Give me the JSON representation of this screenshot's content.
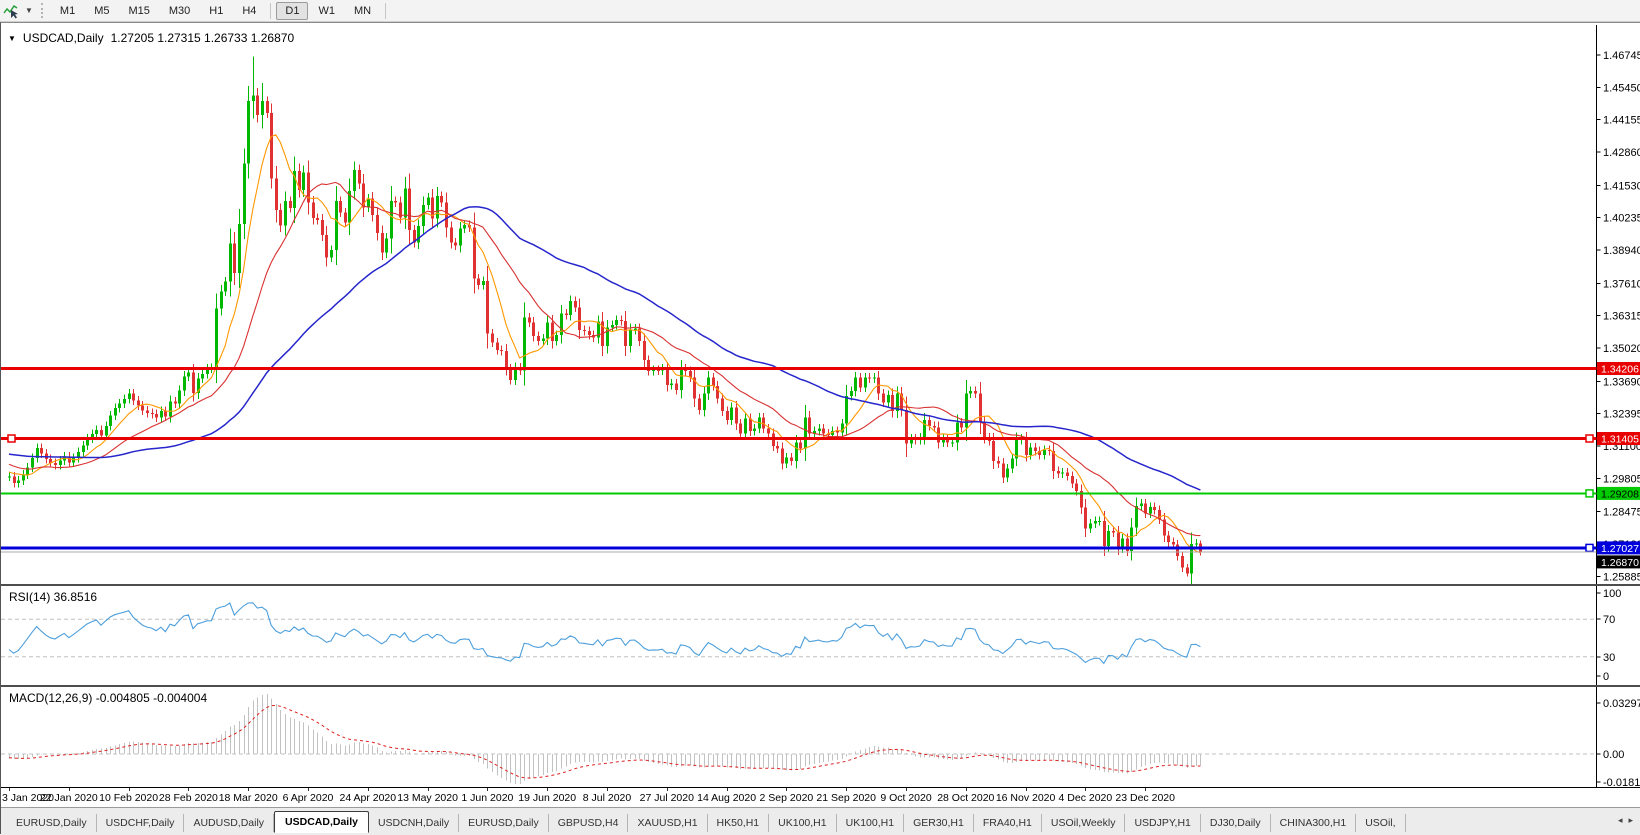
{
  "toolbar": {
    "dropdown_caret": "▼",
    "timeframes": [
      "M1",
      "M5",
      "M15",
      "M30",
      "H1",
      "H4",
      "D1",
      "W1",
      "MN"
    ],
    "active_timeframe": "D1",
    "separators_after": [
      "H4",
      "MN"
    ]
  },
  "title": {
    "caret": "▼",
    "symbol": "USDCAD,Daily",
    "ohlc": "1.27205 1.27315 1.26733 1.26870"
  },
  "rsi_label": "RSI(14) 36.8516",
  "macd_label": "MACD(12,26,9) -0.004805 -0.004004",
  "tabs": {
    "items": [
      "EURUSD,Daily",
      "USDCHF,Daily",
      "AUDUSD,Daily",
      "USDCAD,Daily",
      "USDCNH,Daily",
      "EURUSD,Daily",
      "GBPUSD,H4",
      "XAUUSD,H1",
      "HK50,H1",
      "UK100,H1",
      "UK100,H1",
      "GER30,H1",
      "FRA40,H1",
      "USOil,Weekly",
      "USDJPY,H1",
      "DJ30,Daily",
      "CHINA300,H1",
      "USOil,"
    ],
    "active_index": 3,
    "scroll_left": "◂",
    "scroll_right": "▸"
  },
  "chart_data": {
    "type": "candlestick",
    "symbol": "USDCAD",
    "timeframe": "Daily",
    "title": "USDCAD,Daily",
    "ohlc_current": {
      "open": 1.27205,
      "high": 1.27315,
      "low": 1.26733,
      "close": 1.2687
    },
    "ylim": [
      1.25885,
      1.46745
    ],
    "price_ticks": [
      "1.46745",
      "1.45450",
      "1.44155",
      "1.42860",
      "1.41530",
      "1.40235",
      "1.38940",
      "1.37610",
      "1.36315",
      "1.35020",
      "1.33690",
      "1.32395",
      "1.31100",
      "1.29805",
      "1.28475",
      "1.27180",
      "1.25885"
    ],
    "date_ticks": [
      "3 Jan 2020",
      "22 Jan 2020",
      "10 Feb 2020",
      "28 Feb 2020",
      "18 Mar 2020",
      "6 Apr 2020",
      "24 Apr 2020",
      "13 May 2020",
      "1 Jun 2020",
      "19 Jun 2020",
      "8 Jul 2020",
      "27 Jul 2020",
      "14 Aug 2020",
      "2 Sep 2020",
      "21 Sep 2020",
      "9 Oct 2020",
      "28 Oct 2020",
      "16 Nov 2020",
      "4 Dec 2020",
      "23 Dec 2020"
    ],
    "date_tick_step": 13,
    "candle_up_color": "#00b800",
    "candle_down_color": "#e03232",
    "levels": [
      {
        "price": 1.34206,
        "label": "1.34206",
        "color": "#e80000",
        "width": 3,
        "text_color": "#ffffff",
        "handles": []
      },
      {
        "price": 1.31405,
        "label": "1.31405",
        "color": "#e80000",
        "width": 3,
        "text_color": "#ffffff",
        "handles": [
          "left",
          "right"
        ]
      },
      {
        "price": 1.29208,
        "label": "1.29208",
        "color": "#00ca00",
        "width": 2,
        "text_color": "#000000",
        "handles": [
          "right"
        ]
      },
      {
        "price": 1.27027,
        "label": "1.27027",
        "color": "#0000dc",
        "width": 3,
        "text_color": "#ffffff",
        "handles": [
          "right"
        ]
      }
    ],
    "current_price": {
      "price": 1.2687,
      "label": "1.26870",
      "line_color": "#a8a8a8",
      "badge_color": "#000000",
      "text_color": "#ffffff"
    },
    "moving_averages": [
      {
        "type": "sma",
        "period": 8,
        "color": "#ff9800",
        "width": 1.1
      },
      {
        "type": "sma",
        "period": 21,
        "color": "#d93030",
        "width": 1.1
      },
      {
        "type": "sma",
        "period": 55,
        "color": "#2626cc",
        "width": 1.5
      }
    ],
    "rsi": {
      "period": 14,
      "current": 36.8516,
      "color": "#4d9fdc",
      "scale": [
        "100",
        "70",
        "30",
        "0"
      ],
      "dashed_levels": [
        70,
        30
      ]
    },
    "macd": {
      "fast": 12,
      "slow": 26,
      "signal": 9,
      "current_macd": -0.004805,
      "current_signal": -0.004004,
      "hist_color": "#c2c2c2",
      "signal_color": "#e02020",
      "scale": [
        "0.032972",
        "0.00",
        "-0.018154"
      ]
    },
    "closes_prehistory": [
      1.3085,
      1.3102,
      1.3118,
      1.3095,
      1.308,
      1.3062,
      1.3075,
      1.309,
      1.311,
      1.3125,
      1.314,
      1.3118,
      1.31,
      1.3082,
      1.307,
      1.3055,
      1.3042,
      1.306,
      1.3078,
      1.3095,
      1.3112,
      1.313,
      1.3148,
      1.316,
      1.3172,
      1.3155,
      1.3138,
      1.312,
      1.3105,
      1.3088,
      1.307,
      1.3052,
      1.3038,
      1.306,
      1.3082,
      1.31,
      1.3118,
      1.3135,
      1.315,
      1.3132,
      1.3115,
      1.3098,
      1.308,
      1.3062,
      1.3045,
      1.3028,
      1.301,
      1.3032,
      1.3055,
      1.3078,
      1.306,
      1.3042,
      1.3025,
      1.3008,
      1.2992,
      1.3015,
      1.3038,
      1.302,
      1.3002,
      1.2988
    ],
    "closes": [
      1.2988,
      1.2962,
      1.2972,
      1.2996,
      1.3025,
      1.3062,
      1.3103,
      1.308,
      1.3058,
      1.3042,
      1.3035,
      1.3052,
      1.3068,
      1.3045,
      1.3063,
      1.3086,
      1.3112,
      1.314,
      1.3158,
      1.3175,
      1.3152,
      1.319,
      1.3233,
      1.3262,
      1.328,
      1.3298,
      1.332,
      1.3292,
      1.3272,
      1.3253,
      1.3243,
      1.3238,
      1.3225,
      1.325,
      1.3228,
      1.3288,
      1.328,
      1.3332,
      1.3388,
      1.3405,
      1.3322,
      1.338,
      1.3398,
      1.342,
      1.3422,
      1.366,
      1.3728,
      1.3768,
      1.392,
      1.3802,
      1.3998,
      1.424,
      1.449,
      1.4512,
      1.4435,
      1.449,
      1.4442,
      1.418,
      1.4055,
      1.3992,
      1.409,
      1.4062,
      1.421,
      1.4135,
      1.4205,
      1.4085,
      1.4022,
      1.4015,
      1.3955,
      1.3865,
      1.3895,
      1.409,
      1.4045,
      1.4005,
      1.413,
      1.4215,
      1.416,
      1.4065,
      1.41,
      1.4035,
      1.3962,
      1.3885,
      1.394,
      1.409,
      1.4085,
      1.4025,
      1.414,
      1.3975,
      1.3925,
      1.399,
      1.4075,
      1.4105,
      1.402,
      1.411,
      1.4085,
      1.3985,
      1.3925,
      1.3912,
      1.398,
      1.3995,
      1.3985,
      1.378,
      1.3755,
      1.377,
      1.356,
      1.3525,
      1.3495,
      1.349,
      1.342,
      1.3375,
      1.3425,
      1.3412,
      1.3625,
      1.3605,
      1.355,
      1.353,
      1.354,
      1.3605,
      1.353,
      1.3555,
      1.364,
      1.3635,
      1.369,
      1.3665,
      1.3575,
      1.357,
      1.3555,
      1.3545,
      1.3608,
      1.351,
      1.3585,
      1.3595,
      1.3615,
      1.361,
      1.351,
      1.3575,
      1.358,
      1.353,
      1.3455,
      1.341,
      1.3415,
      1.3412,
      1.342,
      1.3355,
      1.336,
      1.3335,
      1.342,
      1.341,
      1.3385,
      1.33,
      1.3255,
      1.332,
      1.3385,
      1.335,
      1.33,
      1.325,
      1.3215,
      1.3265,
      1.32,
      1.316,
      1.322,
      1.317,
      1.318,
      1.3225,
      1.318,
      1.316,
      1.311,
      1.31,
      1.304,
      1.3065,
      1.305,
      1.3125,
      1.31,
      1.3225,
      1.316,
      1.317,
      1.318,
      1.316,
      1.3155,
      1.317,
      1.3165,
      1.32,
      1.331,
      1.333,
      1.3385,
      1.3345,
      1.3385,
      1.338,
      1.3385,
      1.332,
      1.3285,
      1.3315,
      1.325,
      1.332,
      1.3255,
      1.312,
      1.314,
      1.3135,
      1.3145,
      1.3215,
      1.319,
      1.3185,
      1.3125,
      1.314,
      1.3125,
      1.3125,
      1.3205,
      1.3185,
      1.332,
      1.333,
      1.332,
      1.3205,
      1.3145,
      1.313,
      1.305,
      1.304,
      1.2985,
      1.302,
      1.306,
      1.3135,
      1.314,
      1.3075,
      1.3105,
      1.309,
      1.3075,
      1.3095,
      1.309,
      1.301,
      1.3,
      1.3005,
      1.299,
      1.296,
      1.293,
      1.2865,
      1.278,
      1.28,
      1.281,
      1.281,
      1.271,
      1.277,
      1.2765,
      1.27,
      1.274,
      1.269,
      1.2785,
      1.287,
      1.288,
      1.284,
      1.2866,
      1.2855,
      1.2816,
      1.2752,
      1.2726,
      1.2716,
      1.267,
      1.2624,
      1.26,
      1.2718,
      1.2721,
      1.2687
    ],
    "wick_overrides": {
      "53": [
        1.4668,
        1.442
      ],
      "55": [
        1.4562,
        1.438
      ],
      "57": [
        1.448,
        1.414
      ],
      "256": [
        1.2638,
        1.2588
      ],
      "259": [
        1.27315,
        1.26733
      ]
    }
  }
}
